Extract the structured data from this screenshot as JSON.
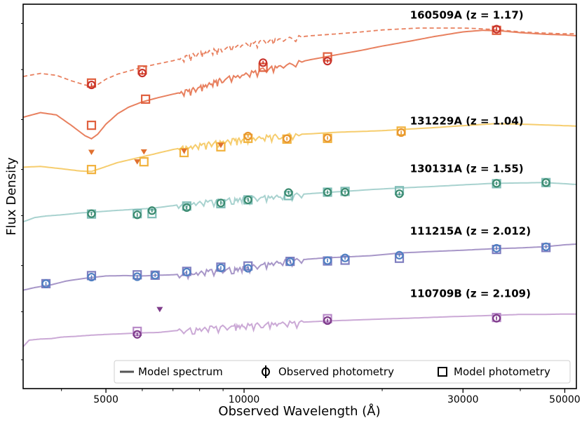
{
  "chart_data": {
    "type": "line",
    "xlabel": "Observed Wavelength (Å)",
    "ylabel": "Flux Density",
    "x_scale": "log",
    "xlim": [
      3300,
      53000
    ],
    "x_ticks": [
      5000,
      10000,
      30000,
      50000
    ],
    "x_ticks_minor": [
      4000,
      6000,
      7000,
      8000,
      9000,
      20000,
      40000
    ],
    "x_tick_labels": [
      "5000",
      "10000",
      "30000",
      "50000"
    ],
    "ylim": [
      0,
      100
    ],
    "legend": {
      "placement": "bottom-right",
      "entries": [
        "Model spectrum",
        "Observed photometry",
        "Model photometry"
      ]
    },
    "series": [
      {
        "name": "160509A (z = 1.17)",
        "label_anchor": [
          23000,
          97.2
        ],
        "color": "#e8805f",
        "marker_color": "#c8312a",
        "spectrum_solid": [
          [
            3300,
            70.6
          ],
          [
            3600,
            71.8
          ],
          [
            3900,
            71.2
          ],
          [
            4200,
            68.5
          ],
          [
            4500,
            65.8
          ],
          [
            4650,
            65.0
          ],
          [
            4800,
            66.2
          ],
          [
            5000,
            68.8
          ],
          [
            5300,
            71.5
          ],
          [
            5600,
            73.2
          ],
          [
            6000,
            74.6
          ],
          [
            6500,
            75.7
          ],
          [
            7000,
            76.6
          ],
          [
            7500,
            77.4
          ],
          [
            8000,
            78.4
          ],
          [
            8500,
            79.6
          ],
          [
            9000,
            80.6
          ],
          [
            10000,
            81.8
          ],
          [
            11000,
            83.0
          ],
          [
            12000,
            84.0
          ],
          [
            14000,
            85.6
          ],
          [
            16000,
            86.9
          ],
          [
            18000,
            88.0
          ],
          [
            20000,
            89.1
          ],
          [
            23000,
            90.4
          ],
          [
            26000,
            91.6
          ],
          [
            30000,
            92.8
          ],
          [
            33000,
            93.2
          ],
          [
            36000,
            93.1
          ],
          [
            40000,
            92.6
          ],
          [
            45000,
            92.2
          ],
          [
            50000,
            92.0
          ],
          [
            53000,
            91.8
          ]
        ],
        "spectrum_dashed": [
          [
            3300,
            81.2
          ],
          [
            3600,
            82.0
          ],
          [
            3900,
            81.5
          ],
          [
            4200,
            80.1
          ],
          [
            4500,
            79.0
          ],
          [
            4650,
            78.6
          ],
          [
            4800,
            79.1
          ],
          [
            5000,
            80.5
          ],
          [
            5300,
            81.8
          ],
          [
            5600,
            82.6
          ],
          [
            6000,
            83.6
          ],
          [
            6500,
            84.5
          ],
          [
            7000,
            85.3
          ],
          [
            7500,
            86.3
          ],
          [
            8000,
            87.3
          ],
          [
            8500,
            87.9
          ],
          [
            9000,
            88.6
          ],
          [
            10000,
            89.6
          ],
          [
            11000,
            90.4
          ],
          [
            12000,
            91.0
          ],
          [
            14000,
            91.8
          ],
          [
            16000,
            92.3
          ],
          [
            18000,
            92.8
          ],
          [
            20000,
            93.3
          ],
          [
            24000,
            93.8
          ],
          [
            28000,
            93.8
          ],
          [
            30000,
            93.8
          ],
          [
            33000,
            93.6
          ],
          [
            36000,
            93.3
          ],
          [
            40000,
            92.8
          ],
          [
            45000,
            92.5
          ],
          [
            50000,
            92.3
          ],
          [
            53000,
            92.3
          ]
        ],
        "observed": [
          [
            4650,
            79.0
          ],
          [
            6000,
            82.1
          ],
          [
            11000,
            84.8
          ],
          [
            15200,
            85.2
          ],
          [
            35500,
            93.5
          ]
        ],
        "model": [
          [
            4650,
            79.5
          ],
          [
            6000,
            82.9
          ],
          [
            11000,
            83.6
          ],
          [
            15200,
            86.3
          ],
          [
            35500,
            93.2
          ],
          [
            4650,
            68.5
          ],
          [
            6100,
            75.3
          ]
        ],
        "upper_limits": []
      },
      {
        "name": "131229A (z = 1.04)",
        "label_anchor": [
          23000,
          69.6
        ],
        "color": "#f6cd6e",
        "marker_color": "#e8952e",
        "spectrum_solid": [
          [
            3300,
            57.6
          ],
          [
            3600,
            57.8
          ],
          [
            4000,
            57.2
          ],
          [
            4400,
            56.6
          ],
          [
            4650,
            56.5
          ],
          [
            4900,
            57.4
          ],
          [
            5300,
            58.8
          ],
          [
            5800,
            59.9
          ],
          [
            6300,
            60.9
          ],
          [
            7000,
            62.2
          ],
          [
            7600,
            63.0
          ],
          [
            8200,
            63.6
          ],
          [
            8800,
            64.2
          ],
          [
            9500,
            64.7
          ],
          [
            10000,
            64.9
          ],
          [
            11000,
            65.5
          ],
          [
            12000,
            65.9
          ],
          [
            14000,
            66.3
          ],
          [
            16000,
            66.7
          ],
          [
            18000,
            66.9
          ],
          [
            20000,
            67.1
          ],
          [
            22000,
            67.4
          ],
          [
            26000,
            67.9
          ],
          [
            30000,
            68.4
          ],
          [
            35000,
            68.9
          ],
          [
            40000,
            68.8
          ],
          [
            45000,
            68.6
          ],
          [
            50000,
            68.4
          ],
          [
            53000,
            68.3
          ]
        ],
        "observed": [
          [
            10200,
            65.7
          ],
          [
            12400,
            65.0
          ],
          [
            15200,
            65.2
          ],
          [
            22000,
            66.6
          ]
        ],
        "model": [
          [
            4650,
            57.0
          ],
          [
            6050,
            59.0
          ],
          [
            7400,
            61.4
          ],
          [
            8900,
            62.9
          ],
          [
            10200,
            65.1
          ],
          [
            12400,
            64.9
          ],
          [
            15200,
            65.1
          ],
          [
            22000,
            67.0
          ]
        ],
        "upper_limits": [
          [
            4650,
            61.5
          ],
          [
            5850,
            59.0
          ],
          [
            6050,
            61.6
          ],
          [
            7400,
            61.8
          ],
          [
            8900,
            63.3
          ]
        ]
      },
      {
        "name": "130131A (z = 1.55)",
        "label_anchor": [
          23000,
          57.2
        ],
        "color": "#a8d2cf",
        "marker_color": "#3a8a6f",
        "spectrum_solid": [
          [
            3300,
            43.4
          ],
          [
            3500,
            44.5
          ],
          [
            3700,
            44.9
          ],
          [
            4000,
            45.2
          ],
          [
            4400,
            45.7
          ],
          [
            4800,
            46.0
          ],
          [
            5200,
            46.3
          ],
          [
            5700,
            46.6
          ],
          [
            6300,
            46.9
          ],
          [
            7000,
            47.6
          ],
          [
            7700,
            48.3
          ],
          [
            8500,
            48.8
          ],
          [
            9500,
            49.3
          ],
          [
            10000,
            49.4
          ],
          [
            11000,
            49.8
          ],
          [
            12000,
            50.2
          ],
          [
            13500,
            50.6
          ],
          [
            15000,
            51.0
          ],
          [
            17000,
            51.4
          ],
          [
            19000,
            51.8
          ],
          [
            22000,
            52.2
          ],
          [
            26000,
            52.6
          ],
          [
            30000,
            53.0
          ],
          [
            35000,
            53.4
          ],
          [
            40000,
            53.5
          ],
          [
            45000,
            53.6
          ],
          [
            50000,
            53.3
          ],
          [
            53000,
            53.1
          ]
        ],
        "observed": [
          [
            4650,
            45.5
          ],
          [
            5850,
            45.2
          ],
          [
            6300,
            46.3
          ],
          [
            7500,
            47.1
          ],
          [
            8900,
            48.3
          ],
          [
            10200,
            49.1
          ],
          [
            12500,
            51.0
          ],
          [
            15200,
            51.1
          ],
          [
            16600,
            51.1
          ],
          [
            21800,
            50.7
          ],
          [
            35500,
            53.4
          ],
          [
            45500,
            53.6
          ]
        ],
        "model": [
          [
            4650,
            45.4
          ],
          [
            5850,
            45.5
          ],
          [
            6300,
            45.5
          ],
          [
            7500,
            47.5
          ],
          [
            8900,
            48.1
          ],
          [
            10200,
            49.1
          ],
          [
            12500,
            50.2
          ],
          [
            15200,
            51.1
          ],
          [
            16600,
            51.3
          ],
          [
            21800,
            51.5
          ],
          [
            35500,
            53.3
          ],
          [
            45500,
            53.6
          ]
        ],
        "upper_limits": []
      },
      {
        "name": "111215A (z = 2.012)",
        "label_anchor": [
          23000,
          41.0
        ],
        "color": "#a796c8",
        "marker_color": "#4f7fc2",
        "spectrum_solid": [
          [
            3300,
            25.6
          ],
          [
            3500,
            26.3
          ],
          [
            3800,
            27.0
          ],
          [
            4100,
            28.0
          ],
          [
            4500,
            28.7
          ],
          [
            5000,
            29.3
          ],
          [
            5500,
            29.4
          ],
          [
            6000,
            29.3
          ],
          [
            6500,
            29.5
          ],
          [
            7000,
            29.6
          ],
          [
            7800,
            30.1
          ],
          [
            8500,
            30.8
          ],
          [
            9500,
            31.2
          ],
          [
            10000,
            31.4
          ],
          [
            11000,
            32.3
          ],
          [
            12000,
            33.1
          ],
          [
            13500,
            33.6
          ],
          [
            15000,
            34.0
          ],
          [
            17000,
            34.3
          ],
          [
            19000,
            34.6
          ],
          [
            22000,
            35.3
          ],
          [
            26000,
            35.7
          ],
          [
            30000,
            36.0
          ],
          [
            35000,
            36.4
          ],
          [
            40000,
            36.6
          ],
          [
            45000,
            36.9
          ],
          [
            50000,
            37.4
          ],
          [
            53000,
            37.6
          ]
        ],
        "observed": [
          [
            3700,
            27.3
          ],
          [
            4650,
            29.0
          ],
          [
            5850,
            29.1
          ],
          [
            6400,
            29.5
          ],
          [
            7500,
            30.3
          ],
          [
            8900,
            31.4
          ],
          [
            10200,
            31.3
          ],
          [
            12600,
            33.0
          ],
          [
            15200,
            33.3
          ],
          [
            16600,
            34.0
          ],
          [
            21800,
            34.7
          ],
          [
            35500,
            36.5
          ],
          [
            45500,
            36.9
          ]
        ],
        "model": [
          [
            3700,
            27.3
          ],
          [
            4650,
            29.4
          ],
          [
            5850,
            29.6
          ],
          [
            6400,
            29.5
          ],
          [
            7500,
            30.5
          ],
          [
            8900,
            31.6
          ],
          [
            10200,
            31.9
          ],
          [
            12600,
            33.1
          ],
          [
            15200,
            33.2
          ],
          [
            16600,
            33.4
          ],
          [
            21800,
            33.9
          ],
          [
            35500,
            36.2
          ],
          [
            45500,
            36.7
          ]
        ],
        "upper_limits": []
      },
      {
        "name": "110709B (z = 2.109)",
        "label_anchor": [
          23000,
          24.7
        ],
        "color": "#cba9d6",
        "marker_color": "#7e3a8a",
        "spectrum_solid": [
          [
            3300,
            10.9
          ],
          [
            3400,
            12.6
          ],
          [
            3600,
            12.9
          ],
          [
            3800,
            13.0
          ],
          [
            4000,
            13.4
          ],
          [
            4300,
            13.6
          ],
          [
            4650,
            13.9
          ],
          [
            5000,
            14.1
          ],
          [
            5500,
            14.3
          ],
          [
            6000,
            14.5
          ],
          [
            6500,
            14.6
          ],
          [
            7000,
            15.0
          ],
          [
            7800,
            15.5
          ],
          [
            8500,
            15.9
          ],
          [
            9500,
            16.3
          ],
          [
            10000,
            16.5
          ],
          [
            11000,
            16.8
          ],
          [
            12000,
            17.1
          ],
          [
            13500,
            17.3
          ],
          [
            15200,
            17.6
          ],
          [
            17000,
            17.8
          ],
          [
            20000,
            18.1
          ],
          [
            24000,
            18.4
          ],
          [
            28000,
            18.7
          ],
          [
            32000,
            18.9
          ],
          [
            36000,
            19.1
          ],
          [
            40000,
            19.3
          ],
          [
            45000,
            19.3
          ],
          [
            50000,
            19.4
          ],
          [
            53000,
            19.4
          ]
        ],
        "observed": [
          [
            5850,
            14.1
          ],
          [
            15200,
            17.7
          ],
          [
            35500,
            18.3
          ]
        ],
        "model": [
          [
            5850,
            14.9
          ],
          [
            15200,
            18.2
          ],
          [
            35500,
            18.5
          ]
        ],
        "upper_limits": [
          [
            6550,
            20.6
          ]
        ]
      }
    ]
  }
}
